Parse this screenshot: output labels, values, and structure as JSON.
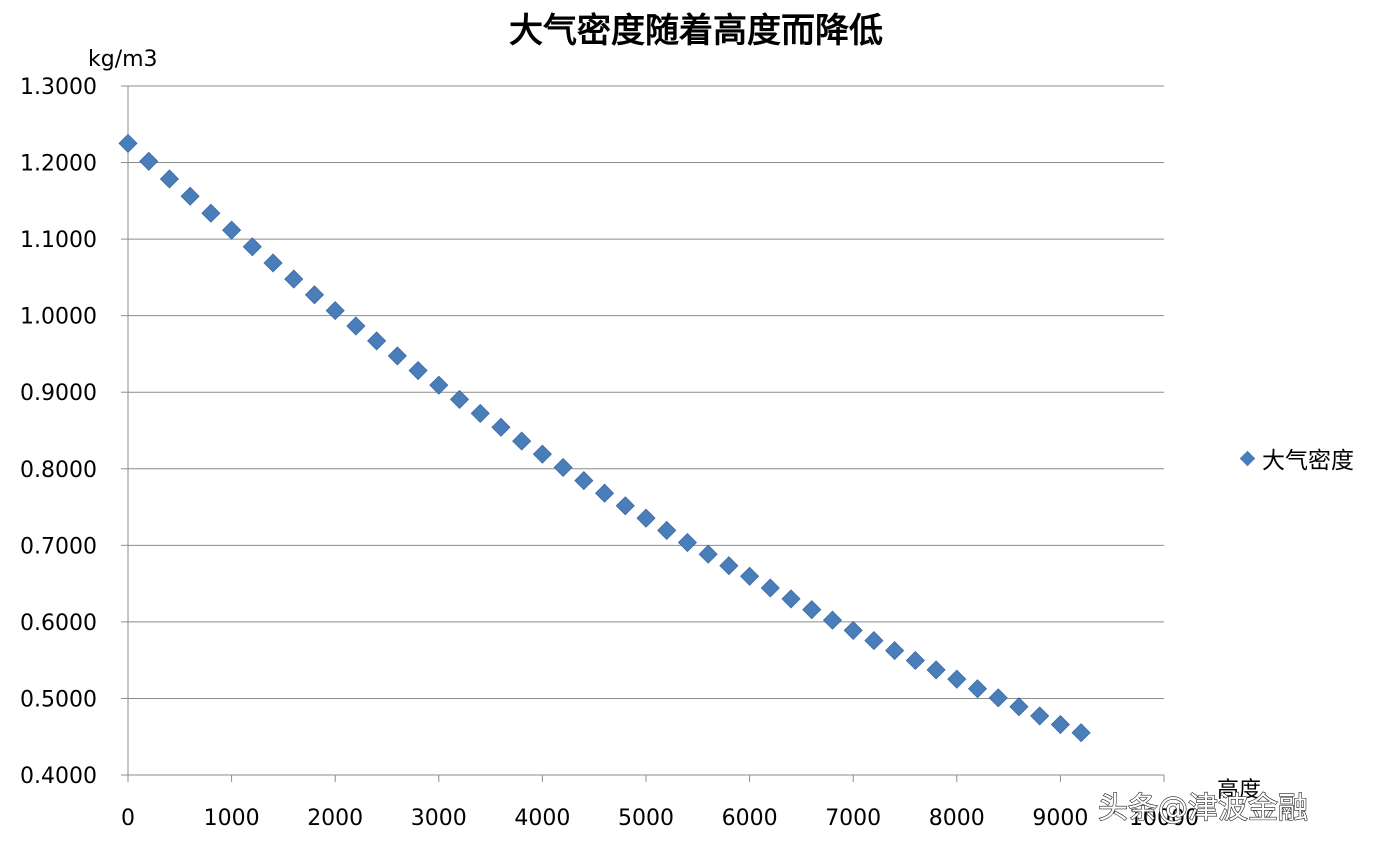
{
  "chart_data": {
    "type": "scatter",
    "title": "大气密度随着高度而降低",
    "ylabel": "kg/m3",
    "xlabel": "高度",
    "xlim": [
      0,
      10000
    ],
    "ylim": [
      0.4,
      1.3
    ],
    "x_ticks": [
      "0",
      "1000",
      "2000",
      "3000",
      "4000",
      "5000",
      "6000",
      "7000",
      "8000",
      "9000",
      "10000"
    ],
    "y_ticks": [
      "1.3000",
      "1.2000",
      "1.1000",
      "1.0000",
      "0.9000",
      "0.8000",
      "0.7000",
      "0.6000",
      "0.5000",
      "0.4000"
    ],
    "grid": "horizontal",
    "legend_position": "right",
    "marker": "diamond",
    "marker_color": "#4a7ebb",
    "series": [
      {
        "name": "大气密度",
        "x": [
          0,
          200,
          400,
          600,
          800,
          1000,
          1200,
          1400,
          1600,
          1800,
          2000,
          2200,
          2400,
          2600,
          2800,
          3000,
          3200,
          3400,
          3600,
          3800,
          4000,
          4200,
          4400,
          4600,
          4800,
          5000,
          5200,
          5400,
          5600,
          5800,
          6000,
          6200,
          6400,
          6600,
          6800,
          7000,
          7200,
          7400,
          7600,
          7800,
          8000,
          8200,
          8400,
          8600,
          8800,
          9000,
          9200
        ],
        "values": [
          1.225,
          1.2017,
          1.1786,
          1.156,
          1.1338,
          1.1117,
          1.09,
          1.0688,
          1.0478,
          1.0272,
          1.0066,
          0.9865,
          0.967,
          0.9474,
          0.9283,
          0.9092,
          0.8906,
          0.8723,
          0.8542,
          0.8362,
          0.8191,
          0.8017,
          0.7846,
          0.7681,
          0.7517,
          0.7355,
          0.7195,
          0.7037,
          0.6884,
          0.6734,
          0.6596,
          0.6443,
          0.63,
          0.616,
          0.6022,
          0.5889,
          0.5756,
          0.5625,
          0.5496,
          0.5373,
          0.5252,
          0.5127,
          0.5008,
          0.4892,
          0.4772,
          0.4659,
          0.4552
        ]
      }
    ]
  },
  "watermark": "头条@津波金融"
}
